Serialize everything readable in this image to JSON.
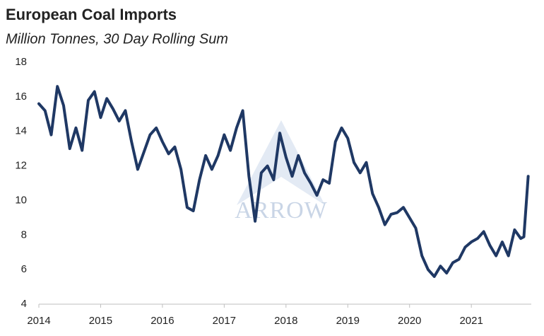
{
  "chart_data": {
    "type": "line",
    "title": "European Coal Imports",
    "subtitle": "Million Tonnes, 30 Day Rolling Sum",
    "watermark": "ARROW",
    "x": [
      2014.0,
      2014.1,
      2014.2,
      2014.3,
      2014.4,
      2014.5,
      2014.6,
      2014.7,
      2014.8,
      2014.9,
      2015.0,
      2015.1,
      2015.2,
      2015.3,
      2015.4,
      2015.5,
      2015.6,
      2015.7,
      2015.8,
      2015.9,
      2016.0,
      2016.1,
      2016.2,
      2016.3,
      2016.4,
      2016.5,
      2016.6,
      2016.7,
      2016.8,
      2016.9,
      2017.0,
      2017.1,
      2017.2,
      2017.3,
      2017.4,
      2017.5,
      2017.6,
      2017.7,
      2017.8,
      2017.9,
      2018.0,
      2018.1,
      2018.2,
      2018.3,
      2018.4,
      2018.5,
      2018.6,
      2018.7,
      2018.8,
      2018.9,
      2019.0,
      2019.1,
      2019.2,
      2019.3,
      2019.4,
      2019.5,
      2019.6,
      2019.7,
      2019.8,
      2019.9,
      2020.0,
      2020.1,
      2020.2,
      2020.3,
      2020.4,
      2020.5,
      2020.6,
      2020.7,
      2020.8,
      2020.9,
      2021.0,
      2021.1,
      2021.2,
      2021.3,
      2021.4,
      2021.5,
      2021.6,
      2021.7,
      2021.8,
      2021.85,
      2021.92
    ],
    "series": [
      {
        "name": "European Coal Imports",
        "color": "#1f3864",
        "values": [
          15.6,
          15.2,
          13.8,
          16.6,
          15.5,
          13.0,
          14.2,
          12.9,
          15.8,
          16.3,
          14.8,
          15.9,
          15.3,
          14.6,
          15.2,
          13.4,
          11.8,
          12.8,
          13.8,
          14.2,
          13.4,
          12.7,
          13.1,
          11.8,
          9.6,
          9.4,
          11.2,
          12.6,
          11.8,
          12.6,
          13.8,
          12.9,
          14.2,
          15.2,
          11.4,
          8.8,
          11.6,
          12.0,
          11.2,
          13.9,
          12.5,
          11.4,
          12.6,
          11.6,
          11.0,
          10.3,
          11.2,
          11.0,
          13.4,
          14.2,
          13.6,
          12.2,
          11.6,
          12.2,
          10.4,
          9.6,
          8.6,
          9.2,
          9.3,
          9.6,
          9.0,
          8.4,
          6.8,
          6.0,
          5.6,
          6.2,
          5.8,
          6.4,
          6.6,
          7.3,
          7.6,
          7.8,
          8.2,
          7.4,
          6.8,
          7.6,
          6.8,
          8.3,
          7.8,
          7.9,
          11.4
        ]
      }
    ],
    "xlim": [
      2014,
      2021.97
    ],
    "xticks": [
      2014,
      2015,
      2016,
      2017,
      2018,
      2019,
      2020,
      2021
    ],
    "ylim": [
      4,
      18
    ],
    "yticks": [
      4,
      6,
      8,
      10,
      12,
      14,
      16,
      18
    ],
    "grid": false
  }
}
